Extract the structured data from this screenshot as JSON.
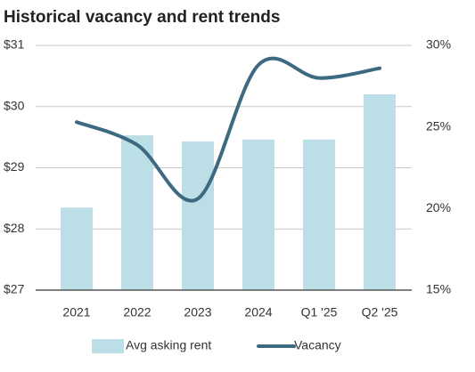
{
  "chart_data": {
    "type": "bar_line",
    "title": "Historical vacancy and rent trends",
    "categories": [
      "2021",
      "2022",
      "2023",
      "2024",
      "Q1 '25",
      "Q2 '25"
    ],
    "series": [
      {
        "name": "Avg asking rent",
        "color": "#bcdfe7",
        "type": "bar",
        "values": [
          28.35,
          29.53,
          29.43,
          29.46,
          29.46,
          30.2
        ]
      },
      {
        "name": "Vacancy",
        "color": "#3d6a80",
        "type": "line",
        "axis": "y2",
        "values": [
          25.3,
          23.9,
          20.6,
          28.8,
          28.0,
          28.6
        ]
      }
    ],
    "ylim": [
      27,
      31
    ],
    "yticks": [
      {
        "value": 27,
        "label": "$27"
      },
      {
        "value": 28,
        "label": "$28"
      },
      {
        "value": 29,
        "label": "$29"
      },
      {
        "value": 30,
        "label": "$30"
      },
      {
        "value": 31,
        "label": "$31"
      }
    ],
    "y2lim": [
      15,
      30
    ],
    "y2ticks": [
      {
        "value": 15,
        "label": "15%"
      },
      {
        "value": 20,
        "label": "20%"
      },
      {
        "value": 25,
        "label": "25%"
      },
      {
        "value": 30,
        "label": "30%"
      }
    ],
    "grid": true,
    "legend": "bottom"
  }
}
